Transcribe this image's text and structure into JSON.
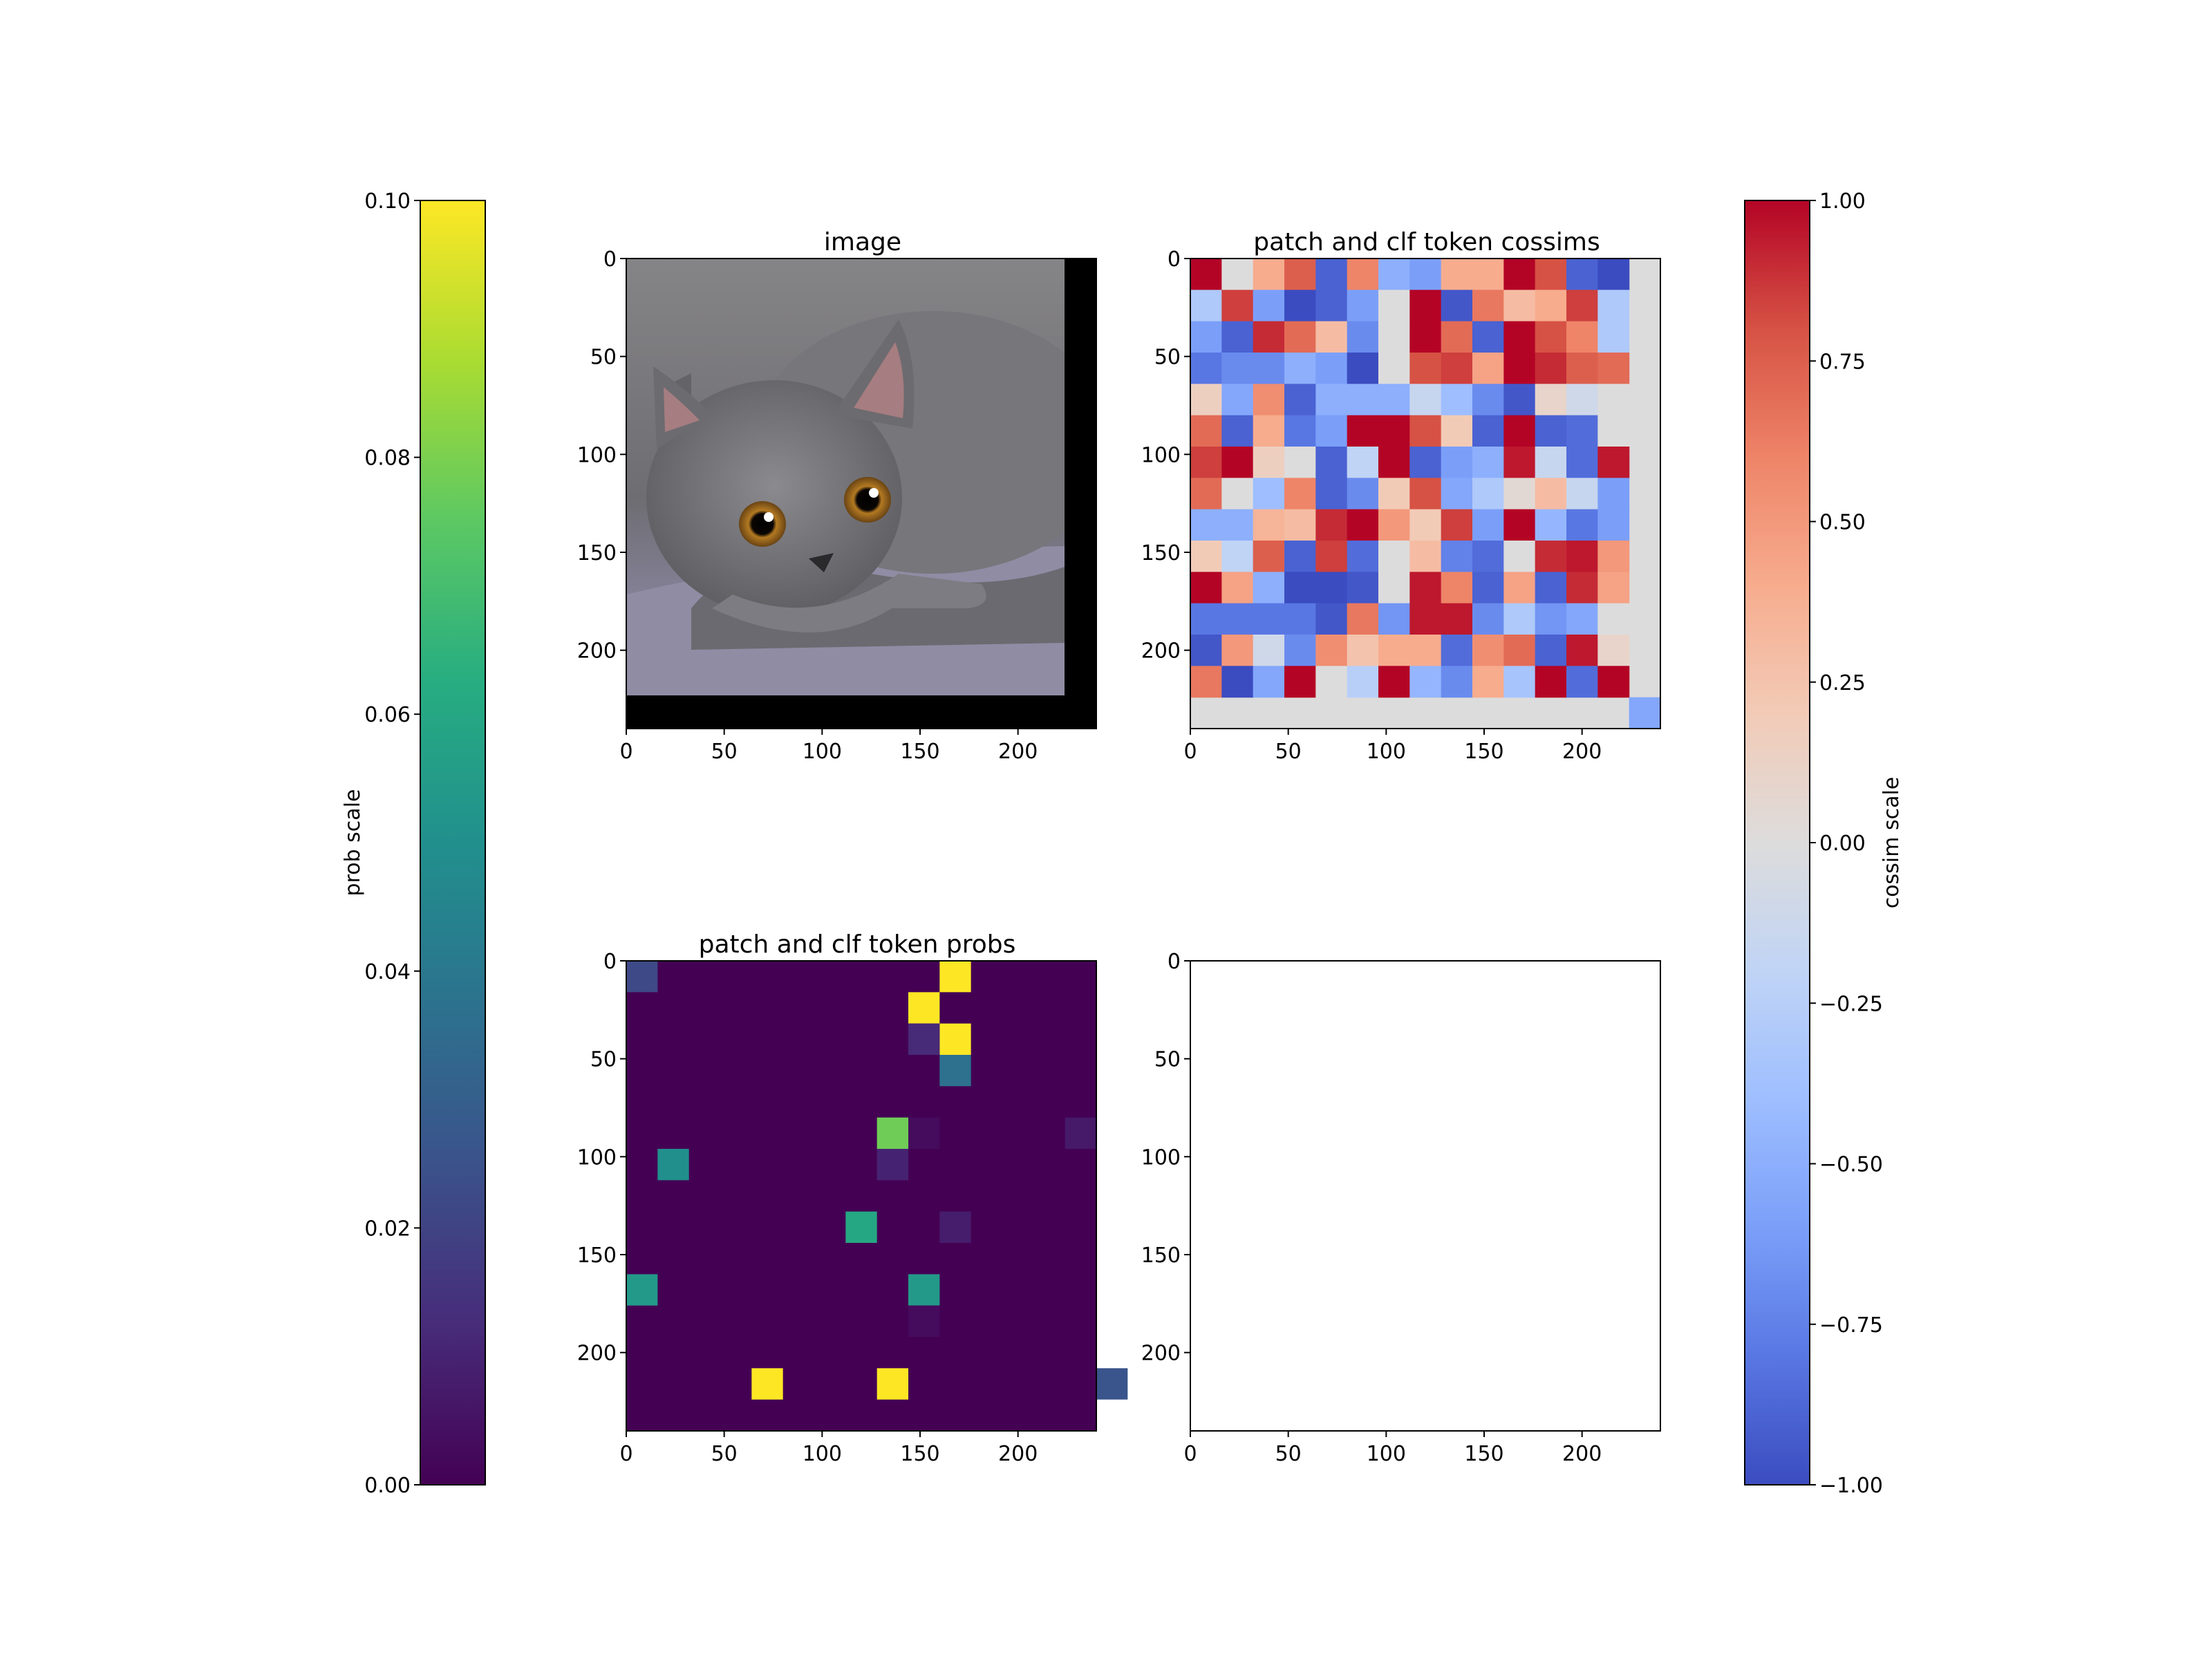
{
  "chart_data": [
    {
      "type": "image",
      "title": "image",
      "xlim": [
        0,
        240
      ],
      "ylim": [
        240,
        0
      ],
      "x_ticks": [
        0,
        50,
        100,
        150,
        200
      ],
      "y_ticks": [
        0,
        50,
        100,
        150,
        200
      ],
      "content": "photo of a gray cat lying down, 224x224 px, padded with black to 240x240"
    },
    {
      "type": "heatmap",
      "title": "patch and clf token cossims",
      "cmap": "coolwarm",
      "vmin": -1.0,
      "vmax": 1.0,
      "xlim": [
        0,
        240
      ],
      "ylim": [
        240,
        0
      ],
      "cell_size": 16,
      "x_ticks": [
        0,
        50,
        100,
        150,
        200
      ],
      "y_ticks": [
        0,
        50,
        100,
        150,
        200
      ],
      "patch_grid": [
        [
          1.0,
          0.0,
          0.4,
          0.75,
          -0.9,
          0.6,
          -0.5,
          -0.6,
          0.4,
          0.4,
          1.0,
          0.8,
          -0.9,
          -1.0
        ],
        [
          -0.3,
          0.85,
          -0.6,
          -1.0,
          -0.9,
          -0.6,
          0.0,
          1.0,
          -0.95,
          0.65,
          0.3,
          0.4,
          0.85,
          -0.3
        ],
        [
          -0.6,
          -0.9,
          0.9,
          0.7,
          0.3,
          -0.7,
          0.0,
          1.0,
          0.7,
          -0.9,
          1.0,
          0.8,
          0.6,
          -0.3
        ],
        [
          -0.8,
          -0.7,
          -0.7,
          -0.5,
          -0.6,
          -1.0,
          0.0,
          0.8,
          0.85,
          0.45,
          1.0,
          0.9,
          0.75,
          0.7
        ],
        [
          0.15,
          -0.55,
          0.55,
          -0.9,
          -0.5,
          -0.5,
          -0.5,
          -0.15,
          -0.4,
          -0.7,
          -0.95,
          0.1,
          -0.1,
          0.0
        ],
        [
          0.7,
          -0.9,
          0.4,
          -0.8,
          -0.6,
          1.0,
          1.0,
          0.8,
          0.2,
          -0.9,
          1.0,
          -0.9,
          -0.85,
          0.0
        ],
        [
          0.85,
          1.0,
          0.15,
          0.0,
          -0.9,
          -0.2,
          1.0,
          -0.9,
          -0.6,
          -0.5,
          0.95,
          -0.15,
          -0.85,
          0.95
        ],
        [
          0.7,
          0.0,
          -0.4,
          0.6,
          -0.9,
          -0.7,
          0.2,
          0.8,
          -0.55,
          -0.3,
          0.05,
          0.3,
          -0.15,
          -0.6
        ],
        [
          -0.5,
          -0.5,
          0.35,
          0.3,
          0.9,
          1.0,
          0.5,
          0.2,
          0.85,
          -0.6,
          1.0,
          -0.45,
          -0.8,
          -0.6
        ],
        [
          0.2,
          -0.2,
          0.75,
          -0.9,
          0.85,
          -0.85,
          0.0,
          0.3,
          -0.75,
          -0.85,
          0.0,
          0.9,
          0.95,
          0.5
        ],
        [
          1.0,
          0.45,
          -0.5,
          -1.0,
          -1.0,
          -0.95,
          0.0,
          0.95,
          0.6,
          -0.9,
          0.45,
          -0.9,
          0.9,
          0.45
        ],
        [
          -0.8,
          -0.8,
          -0.8,
          -0.8,
          -0.95,
          0.65,
          -0.65,
          0.95,
          0.95,
          -0.7,
          -0.3,
          -0.65,
          -0.55,
          0.0
        ],
        [
          -0.95,
          0.5,
          -0.1,
          -0.7,
          0.55,
          0.25,
          0.4,
          0.4,
          -0.85,
          0.55,
          0.7,
          -0.9,
          0.95,
          0.1
        ],
        [
          0.65,
          -1.0,
          -0.55,
          1.0,
          0.0,
          -0.25,
          1.0,
          -0.45,
          -0.7,
          0.4,
          -0.35,
          1.0,
          -0.85,
          1.0
        ]
      ],
      "clf_token_value": -0.55,
      "fill_value": 0.0
    },
    {
      "type": "heatmap",
      "title": "patch and clf token probs",
      "cmap": "viridis",
      "vmin": 0.0,
      "vmax": 0.1,
      "xlim": [
        0,
        240
      ],
      "ylim": [
        240,
        0
      ],
      "cell_size": 16,
      "x_ticks": [
        0,
        50,
        100,
        150,
        200
      ],
      "y_ticks": [
        0,
        50,
        100,
        150,
        200
      ],
      "cells": [
        {
          "row": 0,
          "col": 0,
          "value": 0.022
        },
        {
          "row": 0,
          "col": 10,
          "value": 0.1
        },
        {
          "row": 1,
          "col": 9,
          "value": 0.1
        },
        {
          "row": 2,
          "col": 10,
          "value": 0.1
        },
        {
          "row": 2,
          "col": 9,
          "value": 0.012
        },
        {
          "row": 3,
          "col": 10,
          "value": 0.037
        },
        {
          "row": 5,
          "col": 8,
          "value": 0.078
        },
        {
          "row": 5,
          "col": 9,
          "value": 0.003
        },
        {
          "row": 5,
          "col": 14,
          "value": 0.007
        },
        {
          "row": 6,
          "col": 1,
          "value": 0.05
        },
        {
          "row": 6,
          "col": 8,
          "value": 0.01
        },
        {
          "row": 8,
          "col": 7,
          "value": 0.06
        },
        {
          "row": 8,
          "col": 10,
          "value": 0.008
        },
        {
          "row": 10,
          "col": 0,
          "value": 0.054
        },
        {
          "row": 10,
          "col": 9,
          "value": 0.054
        },
        {
          "row": 11,
          "col": 9,
          "value": 0.003
        },
        {
          "row": 13,
          "col": 4,
          "value": 0.1
        },
        {
          "row": 13,
          "col": 8,
          "value": 0.1
        },
        {
          "row": 13,
          "col": 15,
          "value": 0.026
        },
        {
          "row": 13,
          "col": 18,
          "value": 0.004
        }
      ]
    },
    {
      "type": "heatmap",
      "title": "",
      "empty": true,
      "xlim": [
        0,
        240
      ],
      "ylim": [
        240,
        0
      ],
      "x_ticks": [
        0,
        50,
        100,
        150,
        200
      ],
      "y_ticks": [
        0,
        50,
        100,
        150,
        200
      ]
    }
  ],
  "colorbars": {
    "prob": {
      "label": "prob scale",
      "cmap": "viridis",
      "ticks": [
        "0.00",
        "0.02",
        "0.04",
        "0.06",
        "0.08",
        "0.10"
      ]
    },
    "cossim": {
      "label": "cossim scale",
      "cmap": "coolwarm",
      "ticks": [
        "−1.00",
        "−0.75",
        "−0.50",
        "−0.25",
        "0.00",
        "0.25",
        "0.50",
        "0.75",
        "1.00"
      ]
    }
  },
  "tick_labels": [
    "0",
    "50",
    "100",
    "150",
    "200"
  ],
  "colors": {
    "viridis": [
      "#440154",
      "#472c7a",
      "#3b528b",
      "#2c728e",
      "#21908d",
      "#27ad81",
      "#5cc863",
      "#aadc32",
      "#fde725"
    ],
    "coolwarm": [
      "#3b4cc0",
      "#5977e3",
      "#7b9ff9",
      "#9ebeff",
      "#c0d4f5",
      "#dddcdc",
      "#f2cbb7",
      "#f7ac8e",
      "#ee8468",
      "#d65244",
      "#b40426"
    ],
    "padding": "#000000"
  }
}
